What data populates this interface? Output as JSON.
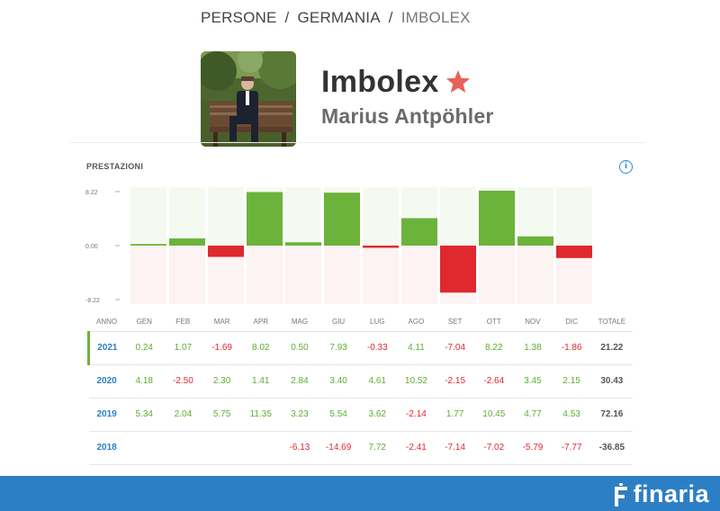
{
  "breadcrumb": {
    "items": [
      "PERSONE",
      "GERMANIA"
    ],
    "current": "IMBOLEX",
    "separator": "/"
  },
  "profile": {
    "name": "Imbolex",
    "full_name": "Marius Antpöhler",
    "star_color": "#e8605a"
  },
  "performance": {
    "title": "PRESTAZIONI",
    "info_icon": "i",
    "headers": [
      "ANNO",
      "GEN",
      "FEB",
      "MAR",
      "APR",
      "MAG",
      "GIU",
      "LUG",
      "AGO",
      "SET",
      "OTT",
      "NOV",
      "DIC",
      "TOTALE"
    ],
    "rows": [
      {
        "year": "2021",
        "months": [
          "0.24",
          "1.07",
          "-1.69",
          "8.02",
          "0.50",
          "7.93",
          "-0.33",
          "4.11",
          "-7.04",
          "8.22",
          "1.38",
          "-1.86"
        ],
        "total": "21.22"
      },
      {
        "year": "2020",
        "months": [
          "4.18",
          "-2.50",
          "2.30",
          "1.41",
          "2.84",
          "3.40",
          "4.61",
          "10.52",
          "-2.15",
          "-2.64",
          "3.45",
          "2.15"
        ],
        "total": "30.43"
      },
      {
        "year": "2019",
        "months": [
          "5.34",
          "2.04",
          "5.75",
          "11.35",
          "3.23",
          "5.54",
          "3.62",
          "-2.14",
          "1.77",
          "10.45",
          "4.77",
          "4.53"
        ],
        "total": "72.16"
      },
      {
        "year": "2018",
        "months": [
          "",
          "",
          "",
          "",
          "-6.13",
          "-14.69",
          "7.72",
          "-2.41",
          "-7.14",
          "-7.02",
          "-5.79",
          "-7.77"
        ],
        "total": "-36.85"
      }
    ]
  },
  "chart_data": {
    "type": "bar",
    "categories": [
      "GEN",
      "FEB",
      "MAR",
      "APR",
      "MAG",
      "GIU",
      "LUG",
      "AGO",
      "SET",
      "OTT",
      "NOV",
      "DIC"
    ],
    "values": [
      0.24,
      1.07,
      -1.69,
      8.02,
      0.5,
      7.93,
      -0.33,
      4.11,
      -7.04,
      8.22,
      1.38,
      -1.86
    ],
    "ytick_labels": [
      "8.22",
      "0.00",
      "-8.22"
    ],
    "ylim": [
      -8.22,
      8.22
    ],
    "colors": {
      "positive": "#6bb33a",
      "negative": "#e0282f",
      "pos_bg": "#f5faf1",
      "neg_bg": "#fdf3f3"
    }
  },
  "footer": {
    "brand": "finaria",
    "bg_color": "#2d7fc5"
  }
}
